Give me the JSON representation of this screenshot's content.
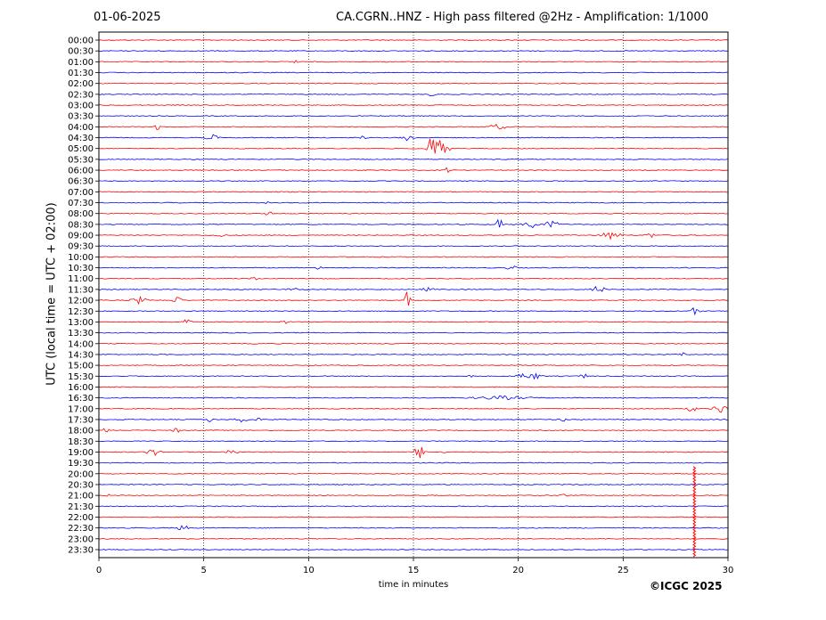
{
  "header": {
    "date": "01-06-2025",
    "title": "CA.CGRN..HNZ - High pass filtered @2Hz - Amplification: 1/1000"
  },
  "footer": {
    "copyright": "©ICGC 2025"
  },
  "chart_data": {
    "type": "seismogram helicorder",
    "ylabel": "UTC (local time = UTC + 02:00)",
    "xlabel": "time in minutes",
    "xlim": [
      0,
      30
    ],
    "x_ticks": [
      0,
      5,
      10,
      15,
      20,
      25,
      30
    ],
    "grid": "vertical dotted lines at 5-minute intervals",
    "colors": {
      "even_rows": "#ff0000",
      "odd_rows": "#0000ff"
    },
    "rows": [
      "00:00",
      "00:30",
      "01:00",
      "01:30",
      "02:00",
      "02:30",
      "03:00",
      "03:30",
      "04:00",
      "04:30",
      "05:00",
      "05:30",
      "06:00",
      "06:30",
      "07:00",
      "07:30",
      "08:00",
      "08:30",
      "09:00",
      "09:30",
      "10:00",
      "10:30",
      "11:00",
      "11:30",
      "12:00",
      "12:30",
      "13:00",
      "13:30",
      "14:00",
      "14:30",
      "15:00",
      "15:30",
      "16:00",
      "16:30",
      "17:00",
      "17:30",
      "18:00",
      "18:30",
      "19:00",
      "19:30",
      "20:00",
      "20:30",
      "21:00",
      "21:30",
      "22:00",
      "22:30",
      "23:00",
      "23:30"
    ],
    "events": [
      {
        "row": "01:00",
        "minute": 9.4,
        "amp": 3,
        "dur": 0.2
      },
      {
        "row": "02:30",
        "minute": 15.9,
        "amp": 3,
        "dur": 0.2
      },
      {
        "row": "04:00",
        "minute": 2.8,
        "amp": 5,
        "dur": 0.2
      },
      {
        "row": "04:00",
        "minute": 19.0,
        "amp": 3,
        "dur": 0.6
      },
      {
        "row": "04:30",
        "minute": 5.4,
        "amp": 4,
        "dur": 0.4
      },
      {
        "row": "04:30",
        "minute": 14.7,
        "amp": 4,
        "dur": 0.4
      },
      {
        "row": "04:30",
        "minute": 12.6,
        "amp": 2,
        "dur": 0.2
      },
      {
        "row": "05:00",
        "minute": 16.0,
        "amp": 16,
        "dur": 0.6
      },
      {
        "row": "05:00",
        "minute": 16.5,
        "amp": 8,
        "dur": 0.3
      },
      {
        "row": "06:00",
        "minute": 16.6,
        "amp": 3,
        "dur": 0.2
      },
      {
        "row": "07:30",
        "minute": 8.0,
        "amp": 2,
        "dur": 0.2
      },
      {
        "row": "08:00",
        "minute": 8.1,
        "amp": 2,
        "dur": 0.3
      },
      {
        "row": "08:30",
        "minute": 19.1,
        "amp": 8,
        "dur": 0.2
      },
      {
        "row": "08:30",
        "minute": 20.6,
        "amp": 4,
        "dur": 0.5
      },
      {
        "row": "08:30",
        "minute": 21.6,
        "amp": 4,
        "dur": 0.5
      },
      {
        "row": "09:00",
        "minute": 24.4,
        "amp": 4,
        "dur": 0.7
      },
      {
        "row": "09:00",
        "minute": 26.3,
        "amp": 3,
        "dur": 0.3
      },
      {
        "row": "09:00",
        "minute": 5.8,
        "amp": 2,
        "dur": 0.3
      },
      {
        "row": "10:30",
        "minute": 10.5,
        "amp": 2,
        "dur": 0.2
      },
      {
        "row": "10:30",
        "minute": 19.7,
        "amp": 2,
        "dur": 0.4
      },
      {
        "row": "11:00",
        "minute": 7.4,
        "amp": 2,
        "dur": 0.3
      },
      {
        "row": "11:30",
        "minute": 23.8,
        "amp": 5,
        "dur": 0.4
      },
      {
        "row": "11:30",
        "minute": 9.3,
        "amp": 2,
        "dur": 0.4
      },
      {
        "row": "11:30",
        "minute": 15.7,
        "amp": 2,
        "dur": 0.4
      },
      {
        "row": "12:00",
        "minute": 1.9,
        "amp": 4,
        "dur": 0.5
      },
      {
        "row": "12:00",
        "minute": 3.7,
        "amp": 4,
        "dur": 0.4
      },
      {
        "row": "12:00",
        "minute": 14.7,
        "amp": 10,
        "dur": 0.2
      },
      {
        "row": "12:30",
        "minute": 28.4,
        "amp": 4,
        "dur": 0.3
      },
      {
        "row": "13:00",
        "minute": 4.2,
        "amp": 4,
        "dur": 0.3
      },
      {
        "row": "13:00",
        "minute": 8.9,
        "amp": 2,
        "dur": 0.3
      },
      {
        "row": "14:30",
        "minute": 27.8,
        "amp": 3,
        "dur": 0.2
      },
      {
        "row": "15:30",
        "minute": 20.2,
        "amp": 4,
        "dur": 0.4
      },
      {
        "row": "15:30",
        "minute": 20.8,
        "amp": 4,
        "dur": 0.4
      },
      {
        "row": "15:30",
        "minute": 23.1,
        "amp": 4,
        "dur": 0.2
      },
      {
        "row": "15:30",
        "minute": 17.8,
        "amp": 2,
        "dur": 0.2
      },
      {
        "row": "16:30",
        "minute": 19.2,
        "amp": 2,
        "dur": 1.8
      },
      {
        "row": "17:00",
        "minute": 29.6,
        "amp": 5,
        "dur": 0.5
      },
      {
        "row": "17:00",
        "minute": 28.3,
        "amp": 4,
        "dur": 0.3
      },
      {
        "row": "17:30",
        "minute": 6.8,
        "amp": 4,
        "dur": 0.4
      },
      {
        "row": "17:30",
        "minute": 5.3,
        "amp": 3,
        "dur": 0.2
      },
      {
        "row": "17:30",
        "minute": 7.6,
        "amp": 2,
        "dur": 0.2
      },
      {
        "row": "17:30",
        "minute": 22.1,
        "amp": 3,
        "dur": 0.2
      },
      {
        "row": "18:00",
        "minute": 0.3,
        "amp": 4,
        "dur": 0.2
      },
      {
        "row": "18:00",
        "minute": 3.7,
        "amp": 4,
        "dur": 0.2
      },
      {
        "row": "19:00",
        "minute": 2.6,
        "amp": 4,
        "dur": 0.5
      },
      {
        "row": "19:00",
        "minute": 6.3,
        "amp": 3,
        "dur": 0.5
      },
      {
        "row": "19:00",
        "minute": 15.3,
        "amp": 7,
        "dur": 0.4
      },
      {
        "row": "19:00",
        "minute": 16.5,
        "amp": 3,
        "dur": 0.2
      },
      {
        "row": "21:00",
        "minute": 0.4,
        "amp": 2,
        "dur": 0.2
      },
      {
        "row": "21:00",
        "minute": 22.1,
        "amp": 2,
        "dur": 0.3
      },
      {
        "row": "22:30",
        "minute": 4.0,
        "amp": 3,
        "dur": 0.4
      }
    ],
    "spikes": [
      {
        "row_start": "20:00",
        "row_end": "23:30",
        "minute": 28.4
      }
    ]
  }
}
